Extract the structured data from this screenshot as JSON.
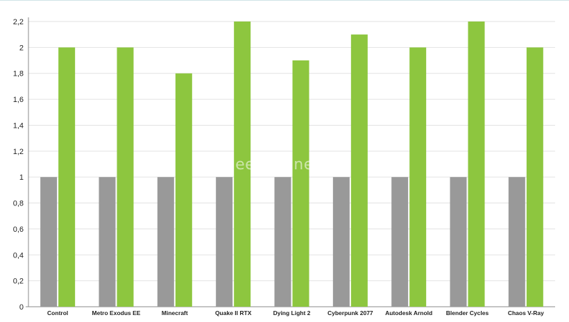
{
  "chart_data": {
    "type": "bar",
    "categories": [
      "Control",
      "Metro Exodus EE",
      "Minecraft",
      "Quake II RTX",
      "Dying Light 2",
      "Cyberpunk 2077",
      "Autodesk Arnold",
      "Blender Cycles",
      "Chaos V-Ray"
    ],
    "series": [
      {
        "values": [
          1,
          1,
          1,
          1,
          1,
          1,
          1,
          1,
          1
        ]
      },
      {
        "values": [
          2,
          2,
          1.8,
          2.2,
          1.9,
          2.1,
          2,
          2.2,
          2
        ]
      }
    ],
    "y_ticks": [
      "0",
      "0,2",
      "0,4",
      "0,6",
      "0,8",
      "1",
      "1,2",
      "1,4",
      "1,6",
      "1,8",
      "2",
      "2,2"
    ],
    "ylim": [
      0,
      2.2
    ],
    "grid": true,
    "legend": "none",
    "colors": {
      "series_0": "#999999",
      "series_1": "#8dc63f",
      "grid": "#e2e2e2",
      "axis": "#888888"
    }
  },
  "watermark": "igeekphone.com"
}
